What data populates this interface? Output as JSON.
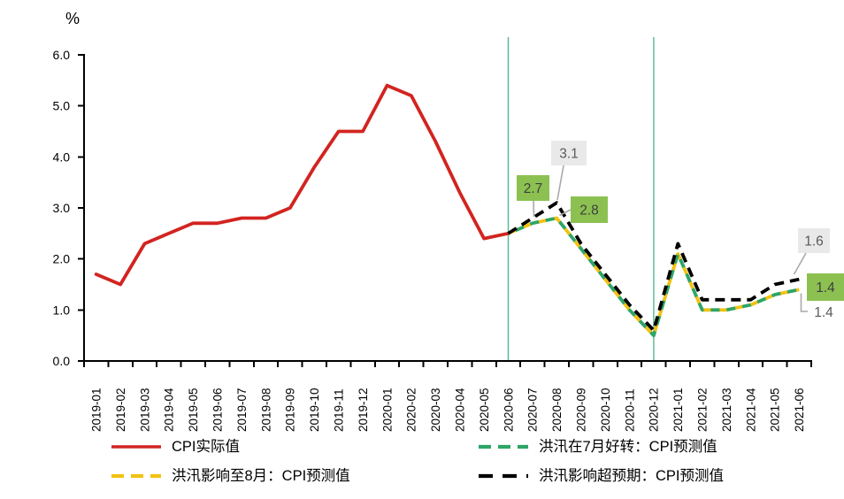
{
  "chart": {
    "unit_label": "%",
    "colors": {
      "actual": "#d22420",
      "forecast_july": "#2ea567",
      "forecast_august": "#f1c213",
      "forecast_exceed": "#000000",
      "vline": "#56b78c",
      "axis": "#000000",
      "annotation_green_bg": "#8cc152",
      "annotation_gray_bg": "#e9e9e9",
      "annotation_dark_text": "#3f3f3f",
      "annotation_gray_text": "#595959",
      "leader": "#a9a9a9"
    },
    "legend": [
      {
        "label": "CPI实际值",
        "series": "cpi-actual"
      },
      {
        "label": "洪汛在7月好转：CPI预测值",
        "series": "forecast-flood-improves-july"
      },
      {
        "label": "洪汛影响至8月：CPI预测值",
        "series": "forecast-flood-until-august"
      },
      {
        "label": "洪汛影响超预期：CPI预测值",
        "series": "forecast-flood-exceeds-expectations"
      }
    ]
  },
  "chart_data": {
    "type": "line",
    "title": "",
    "ylabel": "%",
    "xlabel": "",
    "ylim": [
      0,
      6
    ],
    "ytick_step": 1.0,
    "ytick_format": "one-decimal",
    "grid": false,
    "legend_position": "bottom",
    "x": [
      "2019-01",
      "2019-02",
      "2019-03",
      "2019-04",
      "2019-05",
      "2019-06",
      "2019-07",
      "2019-08",
      "2019-09",
      "2019-10",
      "2019-11",
      "2019-12",
      "2020-01",
      "2020-02",
      "2020-03",
      "2020-04",
      "2020-05",
      "2020-06",
      "2020-07",
      "2020-08",
      "2020-09",
      "2020-10",
      "2020-11",
      "2020-12",
      "2021-01",
      "2021-02",
      "2021-03",
      "2021-04",
      "2021-05",
      "2021-06"
    ],
    "series": [
      {
        "key": "cpi-actual",
        "name": "CPI实际值",
        "color": "#d22420",
        "dash": false,
        "values": [
          1.7,
          1.5,
          2.3,
          2.5,
          2.7,
          2.7,
          2.8,
          2.8,
          3.0,
          3.8,
          4.5,
          4.5,
          5.4,
          5.2,
          4.3,
          3.3,
          2.4,
          2.5,
          null,
          null,
          null,
          null,
          null,
          null,
          null,
          null,
          null,
          null,
          null,
          null
        ]
      },
      {
        "key": "forecast-flood-until-august",
        "name": "洪汛影响至8月：CPI预测值",
        "color": "#f1c213",
        "dash": true,
        "values": [
          null,
          null,
          null,
          null,
          null,
          null,
          null,
          null,
          null,
          null,
          null,
          null,
          null,
          null,
          null,
          null,
          null,
          2.5,
          2.7,
          2.8,
          2.2,
          1.6,
          1.0,
          0.5,
          2.1,
          1.0,
          1.0,
          1.1,
          1.3,
          1.4
        ]
      },
      {
        "key": "forecast-flood-improves-july",
        "name": "洪汛在7月好转：CPI预测值",
        "color": "#2ea567",
        "dash": true,
        "values": [
          null,
          null,
          null,
          null,
          null,
          null,
          null,
          null,
          null,
          null,
          null,
          null,
          null,
          null,
          null,
          null,
          null,
          2.5,
          2.7,
          2.8,
          2.2,
          1.6,
          1.0,
          0.5,
          2.1,
          1.0,
          1.0,
          1.1,
          1.3,
          1.4
        ]
      },
      {
        "key": "forecast-flood-exceeds-expectations",
        "name": "洪汛影响超预期：CPI预测值",
        "color": "#000000",
        "dash": true,
        "values": [
          null,
          null,
          null,
          null,
          null,
          null,
          null,
          null,
          null,
          null,
          null,
          null,
          null,
          null,
          null,
          null,
          null,
          2.5,
          2.8,
          3.1,
          2.3,
          1.7,
          1.1,
          0.6,
          2.3,
          1.2,
          1.2,
          1.2,
          1.5,
          1.6
        ]
      }
    ],
    "vlines": [
      {
        "x": "2020-06"
      },
      {
        "x": "2020-12"
      }
    ],
    "annotations": [
      {
        "text": "2.7",
        "style": "green-box",
        "series": "forecast-flood-improves-july",
        "x": "2020-07",
        "value": 2.7
      },
      {
        "text": "3.1",
        "style": "gray-box",
        "series": "forecast-flood-exceeds-expectations",
        "x": "2020-08",
        "value": 3.1
      },
      {
        "text": "2.8",
        "style": "green-box",
        "series": "forecast-flood-improves-july",
        "x": "2020-08",
        "value": 2.8
      },
      {
        "text": "1.6",
        "style": "gray-box",
        "series": "forecast-flood-exceeds-expectations",
        "x": "2021-06",
        "value": 1.6
      },
      {
        "text": "1.4",
        "style": "green-box",
        "series": "forecast-flood-improves-july",
        "x": "2021-06",
        "value": 1.4
      },
      {
        "text": "1.4",
        "style": "plain",
        "series": "forecast-flood-until-august",
        "x": "2021-06",
        "value": 1.4
      }
    ]
  }
}
